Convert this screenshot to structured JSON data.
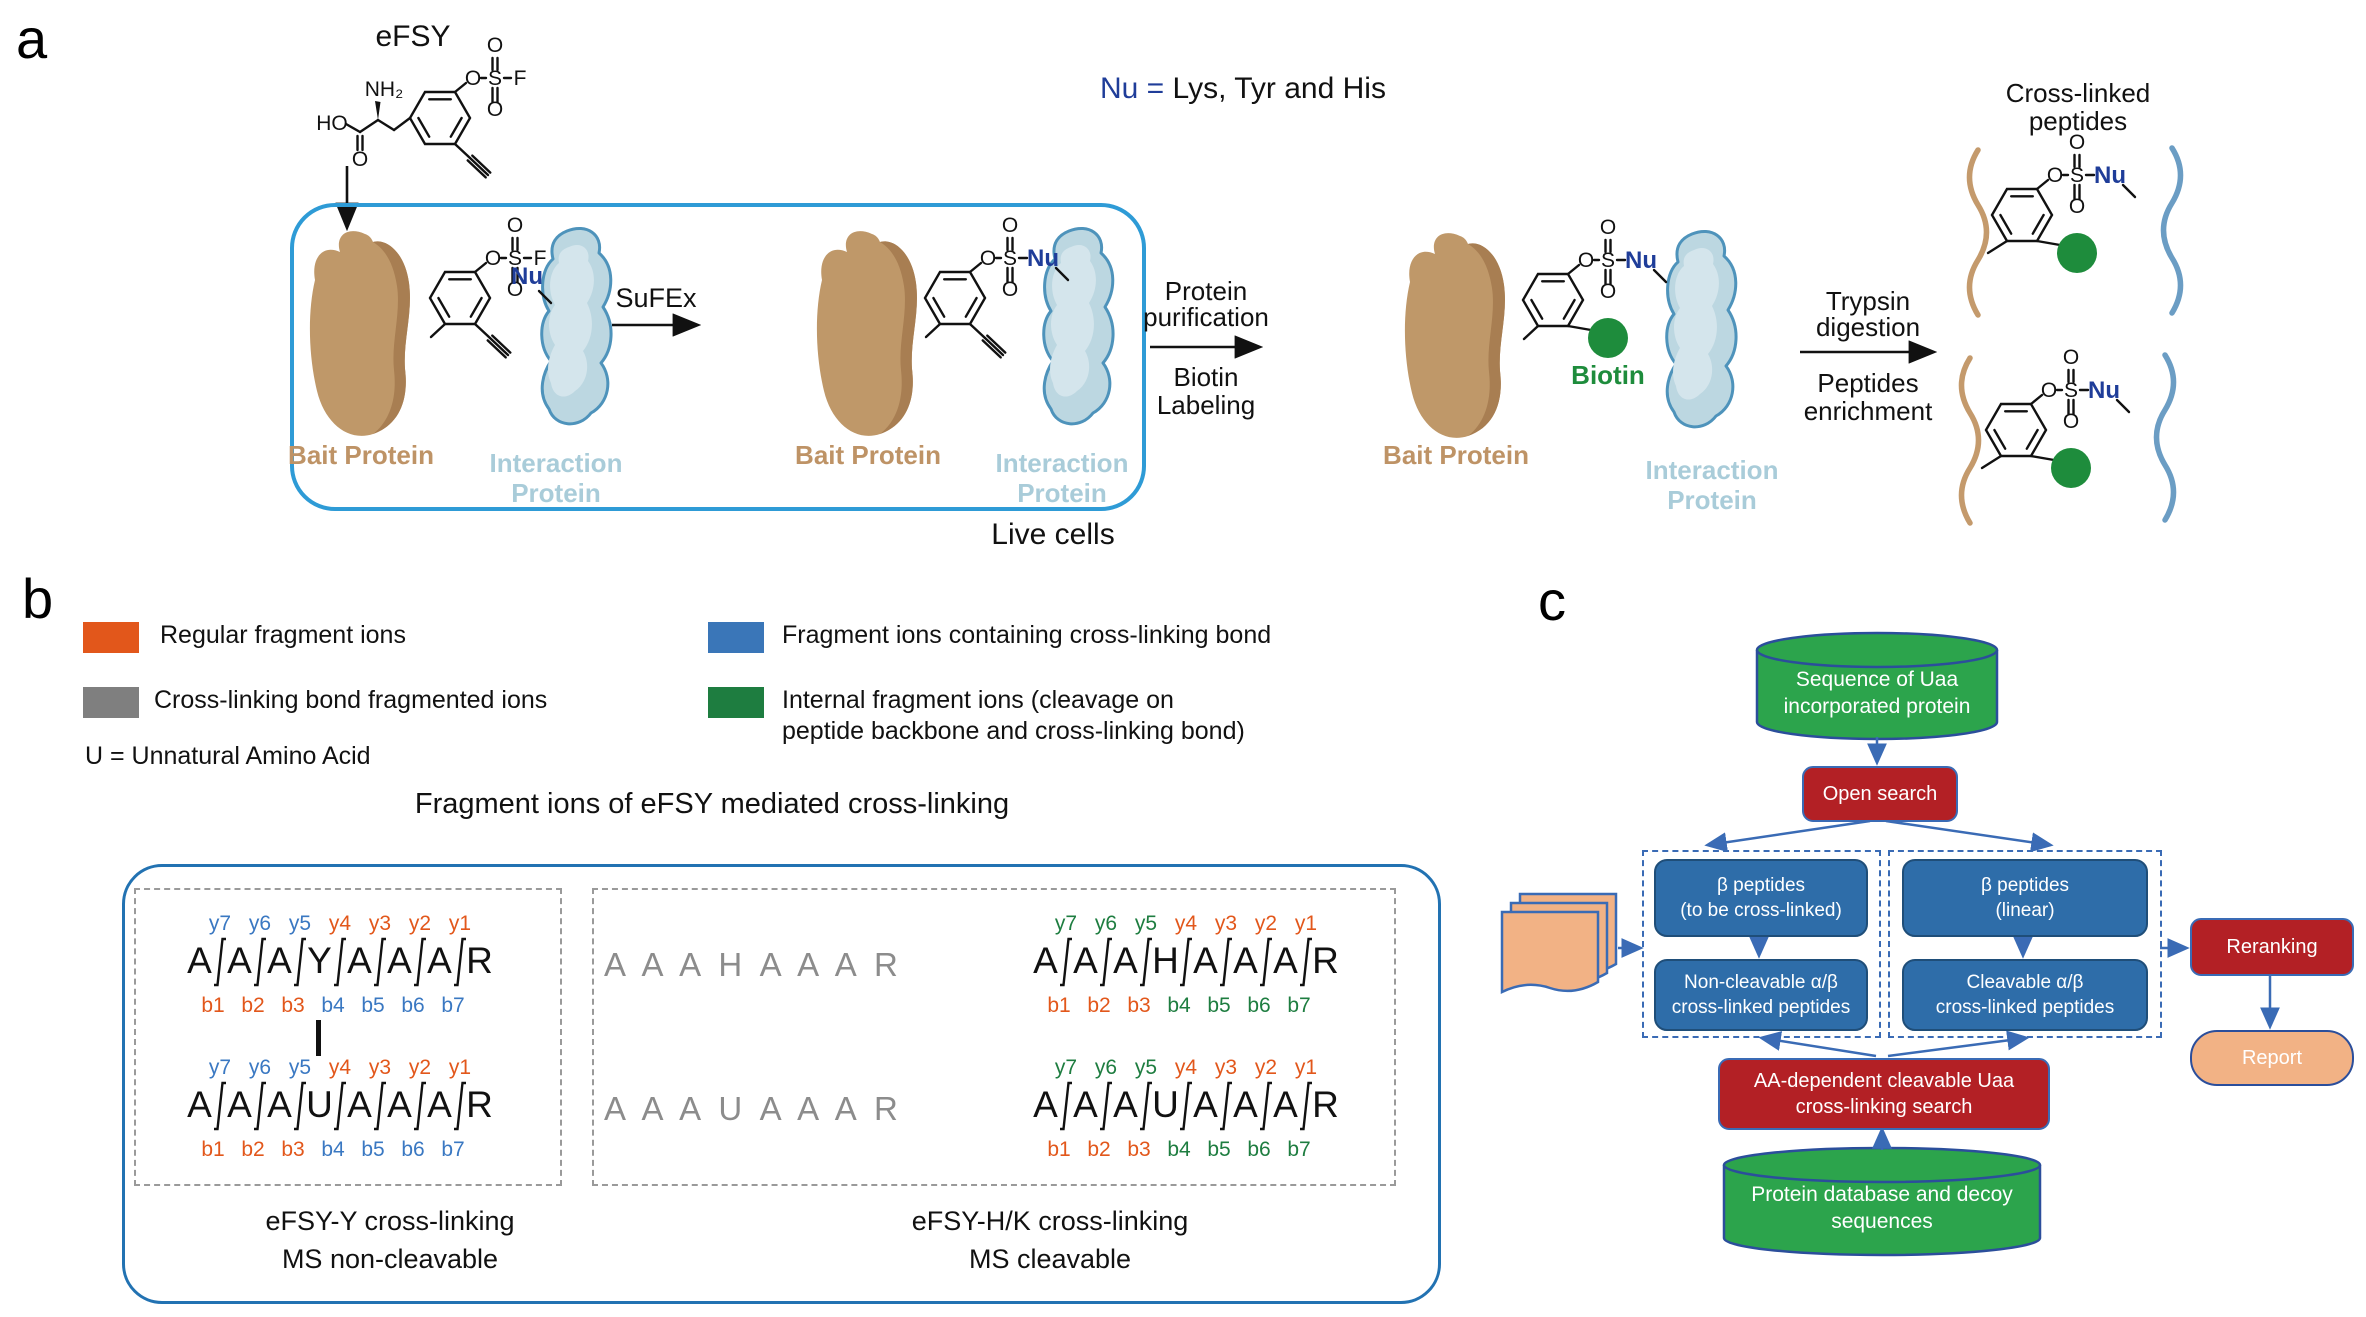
{
  "palette": {
    "ion_orange": "#E2571B",
    "ion_blue": "#3A78C2",
    "ion_green": "#1E7D40",
    "ion_gray": "#8C8C8C",
    "nu_blue": "#1F3D99",
    "bait_tan": "#BE9366",
    "bait_fill": "#BF9869",
    "bait_shade": "#A87E52",
    "interaction_label": "#A9CCD9",
    "interaction_fill": "#BCD7E1",
    "interaction_stroke": "#4E93BB",
    "biotin_green": "#1E8C3C",
    "live_cell_border": "#2E9BD6",
    "outer_b_border": "#2272B2",
    "flow_blue": "#3A6BB5",
    "box_blue": "#2E6DA9",
    "box_red": "#B32025",
    "cylinder_green": "#2CA44C",
    "report_peach": "#F2B285",
    "wavy_tan": "#C49A6C",
    "wavy_blue": "#6B9DC4"
  },
  "panel_a": {
    "label": "a",
    "efsy": "eFSY",
    "nu_eq": "Nu =",
    "nu_rest": " Lys, Tyr and His",
    "sufex": "SuFEx",
    "bait": "Bait Protein",
    "inter1": "Interaction",
    "inter2": "Protein",
    "live_cells": "Live cells",
    "purif1": "Protein",
    "purif2": "purification",
    "purif3": "Biotin",
    "purif4": "Labeling",
    "tryp1": "Trypsin",
    "tryp2": "digestion",
    "tryp3": "Peptides",
    "tryp4": "enrichment",
    "biotin": "Biotin",
    "xl1": "Cross-linked",
    "xl2": "peptides",
    "atoms": {
      "o": "O",
      "s": "S",
      "f": "F",
      "nu": "Nu",
      "ho": "HO",
      "nh2": "NH₂"
    }
  },
  "panel_b": {
    "label": "b",
    "legend": [
      {
        "label": "Regular fragment ions",
        "color": "#E2571B"
      },
      {
        "label": "Fragment ions containing cross-linking bond",
        "color": "#3A76B8"
      },
      {
        "label": "Cross-linking bond fragmented ions",
        "color": "#7F7F7F"
      },
      {
        "label": "Internal fragment ions (cleavage on peptide backbone and cross-linking bond)",
        "color": "#1E7D40"
      }
    ],
    "u_note": "U = Unnatural Amino Acid",
    "title": "Fragment ions of eFSY mediated cross-linking",
    "peptides": {
      "p1": {
        "residues": [
          "A",
          "A",
          "A",
          "Y",
          "A",
          "A",
          "A",
          "R"
        ],
        "y_labels": [
          {
            "t": "y7",
            "c": "blue"
          },
          {
            "t": "y6",
            "c": "blue"
          },
          {
            "t": "y5",
            "c": "blue"
          },
          {
            "t": "y4",
            "c": "orange"
          },
          {
            "t": "y3",
            "c": "orange"
          },
          {
            "t": "y2",
            "c": "orange"
          },
          {
            "t": "y1",
            "c": "orange"
          }
        ],
        "b_labels": [
          {
            "t": "b1",
            "c": "orange"
          },
          {
            "t": "b2",
            "c": "orange"
          },
          {
            "t": "b3",
            "c": "orange"
          },
          {
            "t": "b4",
            "c": "blue"
          },
          {
            "t": "b5",
            "c": "blue"
          },
          {
            "t": "b6",
            "c": "blue"
          },
          {
            "t": "b7",
            "c": "blue"
          }
        ]
      },
      "p2": {
        "residues": [
          "A",
          "A",
          "A",
          "U",
          "A",
          "A",
          "A",
          "R"
        ],
        "y_labels": [
          {
            "t": "y7",
            "c": "blue"
          },
          {
            "t": "y6",
            "c": "blue"
          },
          {
            "t": "y5",
            "c": "blue"
          },
          {
            "t": "y4",
            "c": "orange"
          },
          {
            "t": "y3",
            "c": "orange"
          },
          {
            "t": "y2",
            "c": "orange"
          },
          {
            "t": "y1",
            "c": "orange"
          }
        ],
        "b_labels": [
          {
            "t": "b1",
            "c": "orange"
          },
          {
            "t": "b2",
            "c": "orange"
          },
          {
            "t": "b3",
            "c": "orange"
          },
          {
            "t": "b4",
            "c": "blue"
          },
          {
            "t": "b5",
            "c": "blue"
          },
          {
            "t": "b6",
            "c": "blue"
          },
          {
            "t": "b7",
            "c": "blue"
          }
        ]
      },
      "p3": {
        "residues": [
          "A",
          "A",
          "A",
          "H",
          "A",
          "A",
          "A",
          "R"
        ],
        "y_labels": [
          {
            "t": "y7",
            "c": "green"
          },
          {
            "t": "y6",
            "c": "green"
          },
          {
            "t": "y5",
            "c": "green"
          },
          {
            "t": "y4",
            "c": "orange"
          },
          {
            "t": "y3",
            "c": "orange"
          },
          {
            "t": "y2",
            "c": "orange"
          },
          {
            "t": "y1",
            "c": "orange"
          }
        ],
        "b_labels": [
          {
            "t": "b1",
            "c": "orange"
          },
          {
            "t": "b2",
            "c": "orange"
          },
          {
            "t": "b3",
            "c": "orange"
          },
          {
            "t": "b4",
            "c": "green"
          },
          {
            "t": "b5",
            "c": "green"
          },
          {
            "t": "b6",
            "c": "green"
          },
          {
            "t": "b7",
            "c": "green"
          }
        ]
      },
      "p4": {
        "residues": [
          "A",
          "A",
          "A",
          "U",
          "A",
          "A",
          "A",
          "R"
        ],
        "y_labels": [
          {
            "t": "y7",
            "c": "green"
          },
          {
            "t": "y6",
            "c": "green"
          },
          {
            "t": "y5",
            "c": "green"
          },
          {
            "t": "y4",
            "c": "orange"
          },
          {
            "t": "y3",
            "c": "orange"
          },
          {
            "t": "y2",
            "c": "orange"
          },
          {
            "t": "y1",
            "c": "orange"
          }
        ],
        "b_labels": [
          {
            "t": "b1",
            "c": "orange"
          },
          {
            "t": "b2",
            "c": "orange"
          },
          {
            "t": "b3",
            "c": "orange"
          },
          {
            "t": "b4",
            "c": "green"
          },
          {
            "t": "b5",
            "c": "green"
          },
          {
            "t": "b6",
            "c": "green"
          },
          {
            "t": "b7",
            "c": "green"
          }
        ]
      }
    },
    "gray_top": "A A A H A A A R",
    "gray_bottom": "A A A U A A A R",
    "caption_left1": "eFSY-Y cross-linking",
    "caption_left2": "MS non-cleavable",
    "caption_right1": "eFSY-H/K cross-linking",
    "caption_right2": "MS cleavable"
  },
  "panel_c": {
    "label": "c",
    "db_top1": "Sequence of Uaa",
    "db_top2": "incorporated protein",
    "open_search": "Open search",
    "box1l1": "β peptides",
    "box1l2": "(to be cross-linked)",
    "box2l1": "Non-cleavable α/β",
    "box2l2": "cross-linked peptides",
    "box3l1": "β peptides",
    "box3l2": "(linear)",
    "box4l1": "Cleavable α/β",
    "box4l2": "cross-linked peptides",
    "search1": "AA-dependent cleavable Uaa",
    "search2": "cross-linking search",
    "db_bot1": "Protein database and decoy",
    "db_bot2": "sequences",
    "reranking": "Reranking",
    "report": "Report"
  }
}
